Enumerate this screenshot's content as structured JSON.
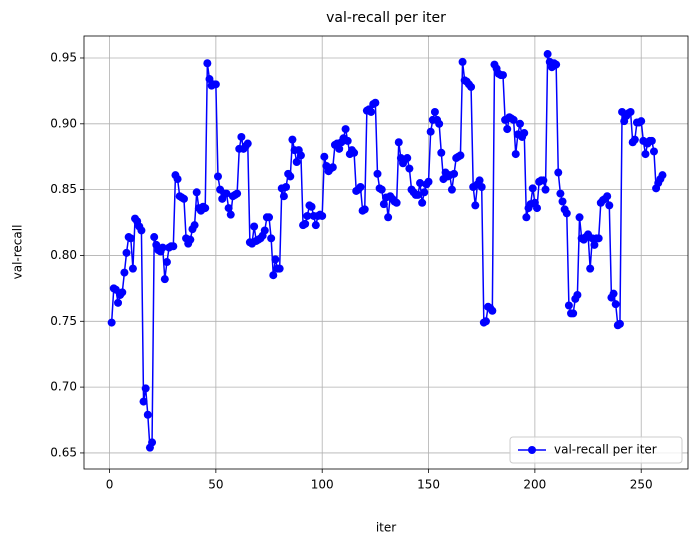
{
  "chart_data": {
    "type": "line",
    "title": "val-recall per iter",
    "x_label": "iter",
    "y_label": "val-recall",
    "x": [
      1,
      2,
      3,
      4,
      5,
      6,
      7,
      8,
      9,
      10,
      11,
      12,
      13,
      14,
      15,
      16,
      17,
      18,
      19,
      20,
      21,
      22,
      23,
      24,
      25,
      26,
      27,
      28,
      29,
      30,
      31,
      32,
      33,
      34,
      35,
      36,
      37,
      38,
      39,
      40,
      41,
      42,
      43,
      44,
      45,
      46,
      47,
      48,
      49,
      50,
      51,
      52,
      53,
      54,
      55,
      56,
      57,
      58,
      59,
      60,
      61,
      62,
      63,
      64,
      65,
      66,
      67,
      68,
      69,
      70,
      71,
      72,
      73,
      74,
      75,
      76,
      77,
      78,
      79,
      80,
      81,
      82,
      83,
      84,
      85,
      86,
      87,
      88,
      89,
      90,
      91,
      92,
      93,
      94,
      95,
      96,
      97,
      98,
      99,
      100,
      101,
      102,
      103,
      104,
      105,
      106,
      107,
      108,
      109,
      110,
      111,
      112,
      113,
      114,
      115,
      116,
      117,
      118,
      119,
      120,
      121,
      122,
      123,
      124,
      125,
      126,
      127,
      128,
      129,
      130,
      131,
      132,
      133,
      134,
      135,
      136,
      137,
      138,
      139,
      140,
      141,
      142,
      143,
      144,
      145,
      146,
      147,
      148,
      149,
      150,
      151,
      152,
      153,
      154,
      155,
      156,
      157,
      158,
      159,
      160,
      161,
      162,
      163,
      164,
      165,
      166,
      167,
      168,
      169,
      170,
      171,
      172,
      173,
      174,
      175,
      176,
      177,
      178,
      179,
      180,
      181,
      182,
      183,
      184,
      185,
      186,
      187,
      188,
      189,
      190,
      191,
      192,
      193,
      194,
      195,
      196,
      197,
      198,
      199,
      200,
      201,
      202,
      203,
      204,
      205,
      206,
      207,
      208,
      209,
      210,
      211,
      212,
      213,
      214,
      215,
      216,
      217,
      218,
      219,
      220,
      221,
      222,
      223,
      224,
      225,
      226,
      227,
      228,
      229,
      230,
      231,
      232,
      233,
      234,
      235,
      236,
      237,
      238,
      239,
      240,
      241,
      242,
      243,
      244,
      245,
      246,
      247,
      248,
      249,
      250,
      251,
      252,
      253,
      254,
      255,
      256,
      257,
      258,
      259,
      260
    ],
    "series": [
      {
        "name": "val-recall per iter",
        "color": "#0000ff",
        "values": [
          0.749,
          0.775,
          0.774,
          0.764,
          0.77,
          0.772,
          0.787,
          0.802,
          0.814,
          0.813,
          0.79,
          0.828,
          0.826,
          0.822,
          0.819,
          0.689,
          0.699,
          0.679,
          0.654,
          0.658,
          0.814,
          0.808,
          0.804,
          0.803,
          0.806,
          0.782,
          0.795,
          0.806,
          0.807,
          0.807,
          0.861,
          0.858,
          0.845,
          0.844,
          0.843,
          0.813,
          0.809,
          0.812,
          0.82,
          0.823,
          0.848,
          0.836,
          0.834,
          0.837,
          0.836,
          0.946,
          0.934,
          0.929,
          0.93,
          0.93,
          0.86,
          0.85,
          0.843,
          0.847,
          0.847,
          0.836,
          0.831,
          0.845,
          0.846,
          0.847,
          0.881,
          0.89,
          0.881,
          0.883,
          0.885,
          0.81,
          0.809,
          0.822,
          0.811,
          0.812,
          0.813,
          0.815,
          0.819,
          0.829,
          0.829,
          0.813,
          0.785,
          0.797,
          0.79,
          0.79,
          0.851,
          0.845,
          0.852,
          0.862,
          0.86,
          0.888,
          0.88,
          0.871,
          0.88,
          0.876,
          0.823,
          0.824,
          0.83,
          0.838,
          0.837,
          0.83,
          0.823,
          0.83,
          0.831,
          0.83,
          0.875,
          0.868,
          0.864,
          0.866,
          0.867,
          0.884,
          0.885,
          0.881,
          0.886,
          0.889,
          0.896,
          0.887,
          0.877,
          0.88,
          0.878,
          0.849,
          0.85,
          0.852,
          0.834,
          0.835,
          0.91,
          0.911,
          0.909,
          0.915,
          0.916,
          0.862,
          0.851,
          0.85,
          0.839,
          0.844,
          0.829,
          0.845,
          0.843,
          0.841,
          0.84,
          0.886,
          0.874,
          0.87,
          0.873,
          0.874,
          0.866,
          0.85,
          0.848,
          0.846,
          0.846,
          0.855,
          0.84,
          0.848,
          0.854,
          0.856,
          0.894,
          0.903,
          0.909,
          0.903,
          0.9,
          0.878,
          0.858,
          0.863,
          0.86,
          0.861,
          0.85,
          0.862,
          0.874,
          0.875,
          0.876,
          0.947,
          0.933,
          0.932,
          0.93,
          0.928,
          0.852,
          0.838,
          0.854,
          0.857,
          0.852,
          0.749,
          0.75,
          0.761,
          0.76,
          0.758,
          0.945,
          0.942,
          0.938,
          0.937,
          0.937,
          0.903,
          0.896,
          0.905,
          0.904,
          0.903,
          0.877,
          0.892,
          0.9,
          0.89,
          0.893,
          0.829,
          0.836,
          0.839,
          0.851,
          0.84,
          0.836,
          0.856,
          0.857,
          0.857,
          0.85,
          0.953,
          0.947,
          0.943,
          0.946,
          0.945,
          0.863,
          0.847,
          0.841,
          0.835,
          0.832,
          0.762,
          0.756,
          0.756,
          0.767,
          0.77,
          0.829,
          0.813,
          0.812,
          0.814,
          0.816,
          0.79,
          0.813,
          0.808,
          0.813,
          0.813,
          0.84,
          0.842,
          0.843,
          0.845,
          0.838,
          0.768,
          0.771,
          0.763,
          0.747,
          0.748,
          0.909,
          0.902,
          0.906,
          0.908,
          0.909,
          0.886,
          0.888,
          0.901,
          0.901,
          0.902,
          0.887,
          0.877,
          0.885,
          0.887,
          0.887,
          0.879,
          0.851,
          0.855,
          0.858,
          0.861
        ]
      }
    ],
    "xlim": [
      -12,
      272
    ],
    "ylim": [
      0.6378,
      0.9667
    ],
    "xticks": [
      0,
      50,
      100,
      150,
      200,
      250
    ],
    "yticks": [
      0.65,
      {
        "value": 0.7,
        "label": "0.70"
      },
      0.75,
      {
        "value": 0.8,
        "label": "0.80"
      },
      0.85,
      {
        "value": 0.9,
        "label": "0.90"
      },
      0.95
    ],
    "grid": true,
    "legend": "lower right",
    "marker": "o"
  }
}
